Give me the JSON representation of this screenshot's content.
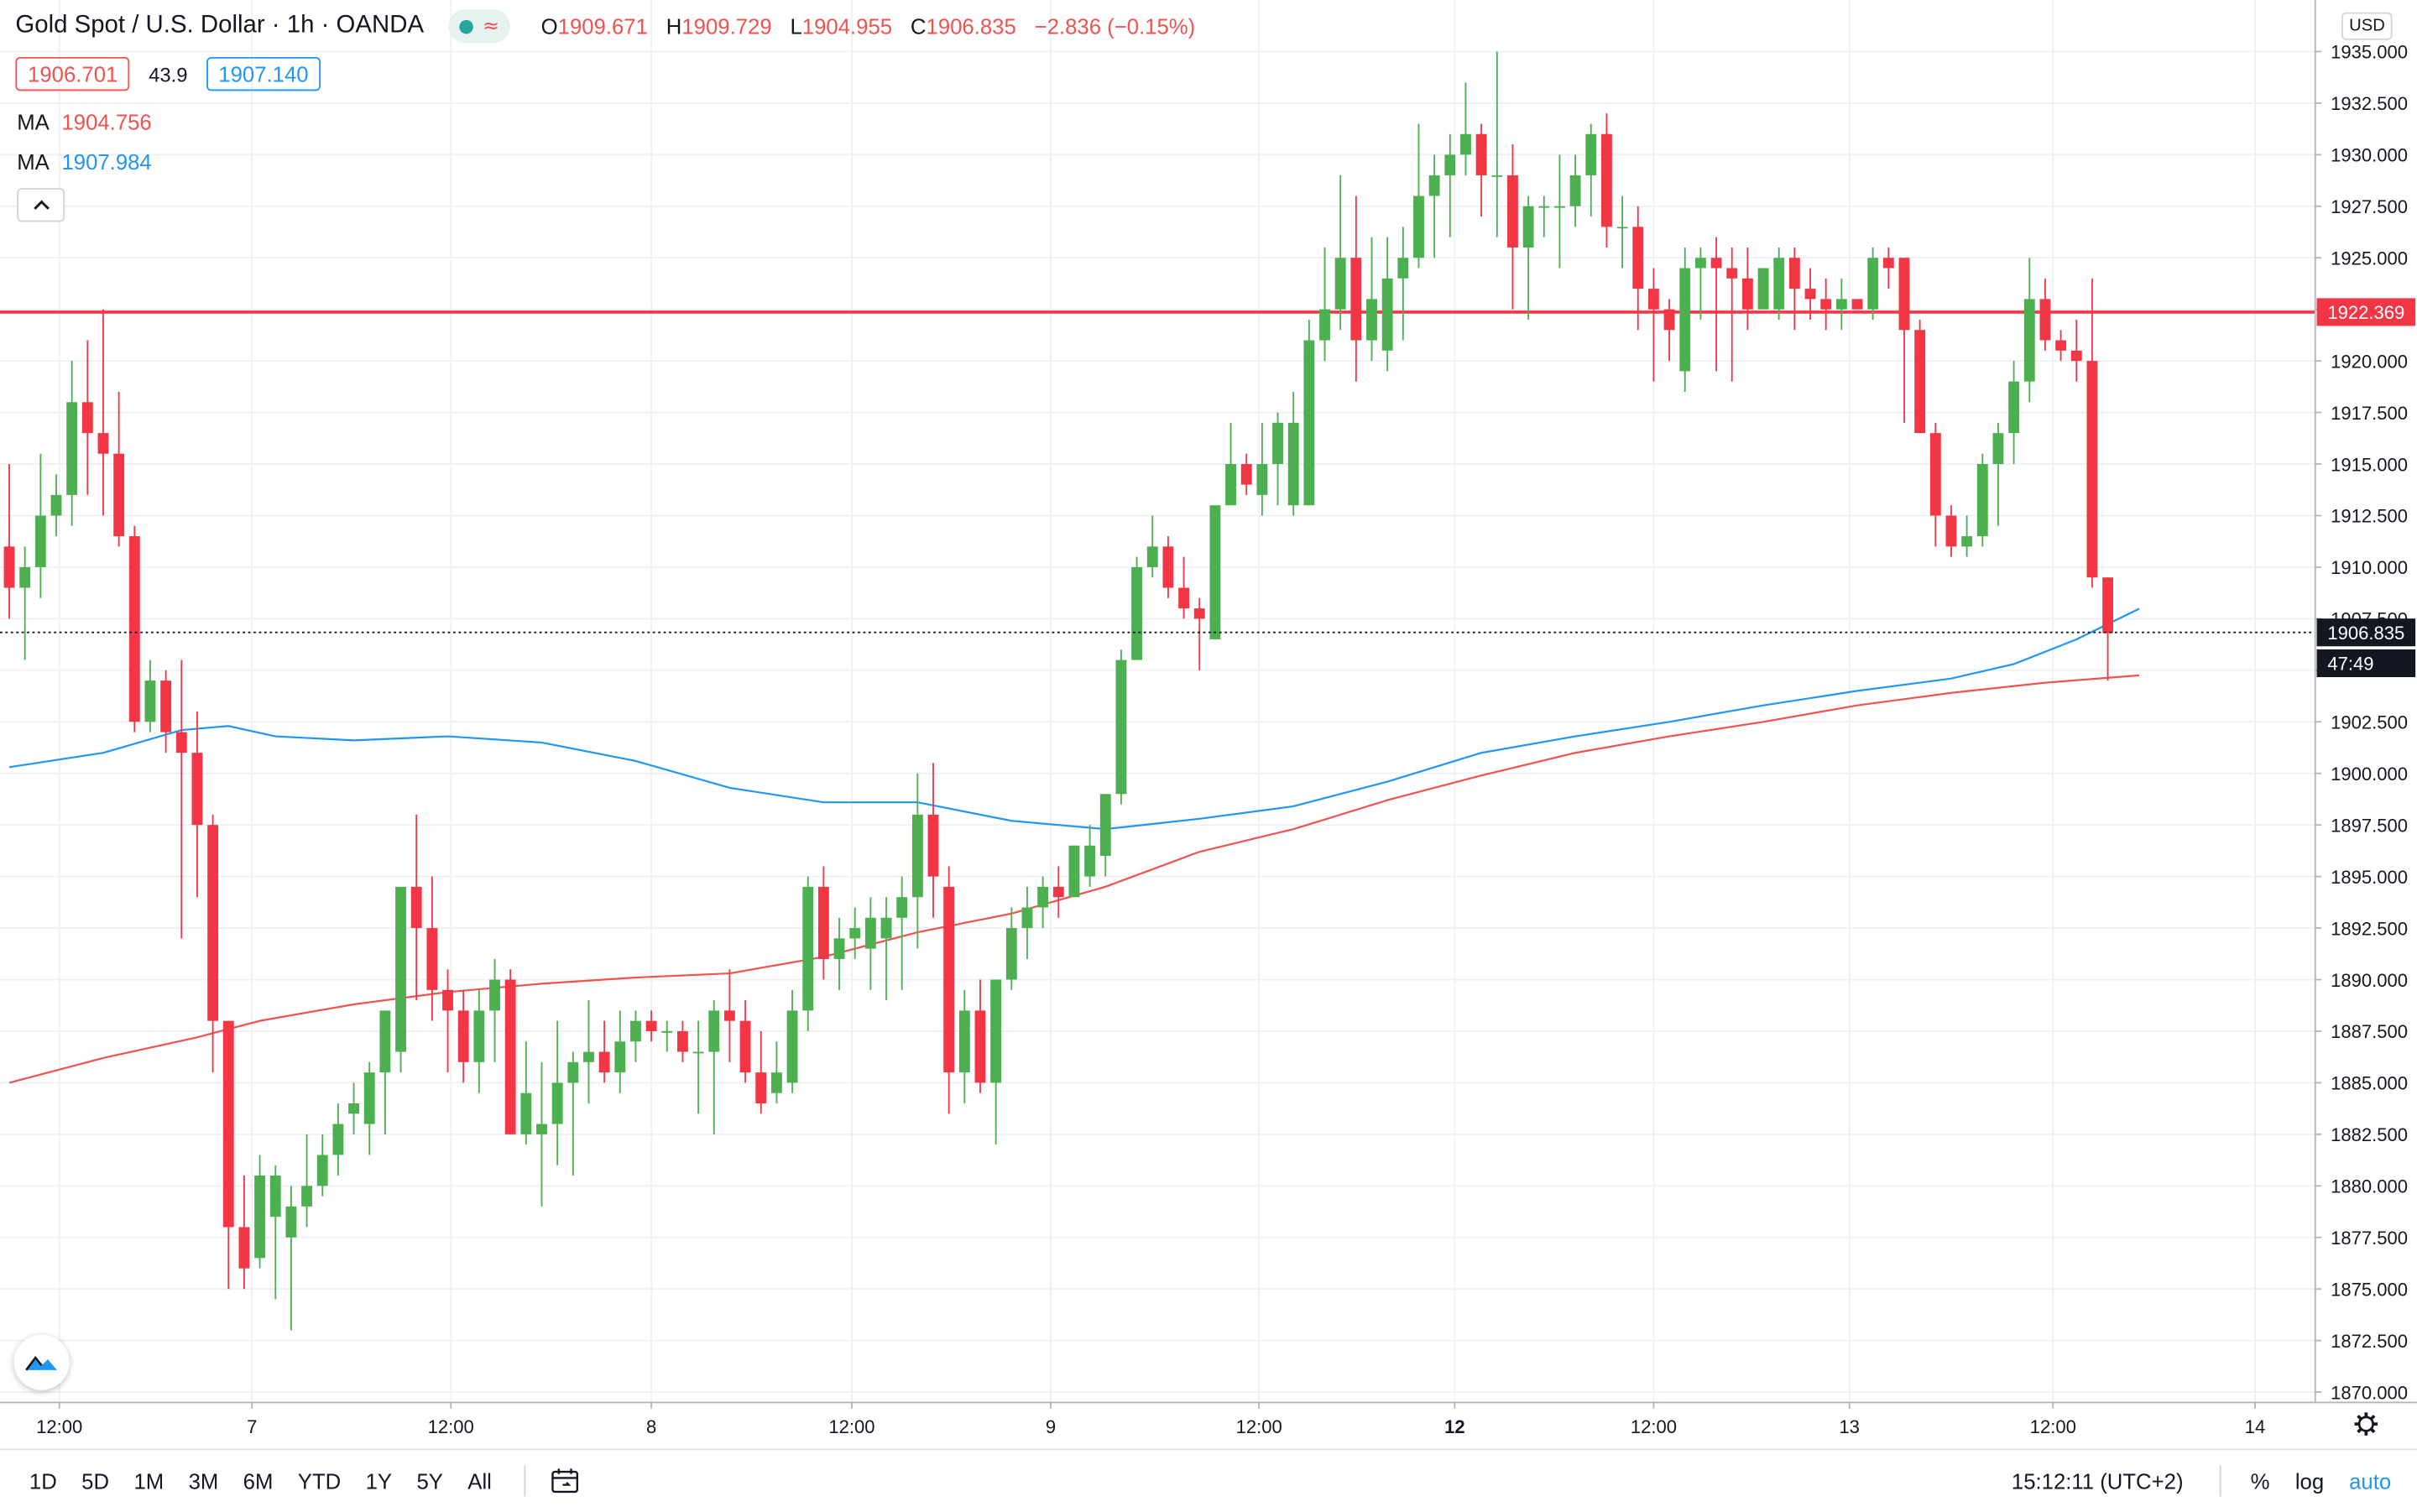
{
  "header": {
    "title": "Gold Spot / U.S. Dollar · 1h · OANDA",
    "ohlc": [
      {
        "k": "O",
        "v": "1909.671"
      },
      {
        "k": "H",
        "v": "1909.729"
      },
      {
        "k": "L",
        "v": "1904.955"
      },
      {
        "k": "C",
        "v": "1906.835"
      }
    ],
    "change": "−2.836 (−0.15%)",
    "bid": "1906.701",
    "spread": "43.9",
    "ask": "1907.140",
    "ma": [
      {
        "label": "MA",
        "value": "1904.756",
        "color": "#ef5350"
      },
      {
        "label": "MA",
        "value": "1907.984",
        "color": "#2196f3"
      }
    ],
    "icons": [
      "status-dot-icon",
      "wave-icon",
      "chevron-up-icon",
      "tradingview-logo-icon"
    ]
  },
  "currency": "USD",
  "toolbar": {
    "ranges": [
      "1D",
      "5D",
      "1M",
      "3M",
      "6M",
      "YTD",
      "1Y",
      "5Y",
      "All"
    ],
    "time": "15:12:11 (UTC+2)",
    "percent": "%",
    "log": "log",
    "auto": "auto",
    "icons": [
      "calendar-goto-icon",
      "settings-gear-icon"
    ]
  },
  "chart_data": {
    "type": "candlestick",
    "symbol": "XAUUSD",
    "interval": "1h",
    "colors": {
      "up": "#4caf50",
      "down": "#f23645",
      "ma_fast": "#ef5350",
      "ma_slow": "#2196f3",
      "level": "#f23645"
    },
    "ylim": [
      1869.5,
      1937.5
    ],
    "y_ticks": [
      "1870.000",
      "1872.500",
      "1875.000",
      "1877.500",
      "1880.000",
      "1882.500",
      "1885.000",
      "1887.500",
      "1890.000",
      "1892.500",
      "1895.000",
      "1897.500",
      "1900.000",
      "1902.500",
      "1905.000",
      "1907.500",
      "1910.000",
      "1912.500",
      "1915.000",
      "1917.500",
      "1920.000",
      "1922.500",
      "1925.000",
      "1927.500",
      "1930.000",
      "1932.500",
      "1935.000"
    ],
    "x_ticks": [
      {
        "label": "12:00",
        "bar": 3.2
      },
      {
        "label": "7",
        "bar": 15.5
      },
      {
        "label": "12:00",
        "bar": 28.2
      },
      {
        "label": "8",
        "bar": 41.0
      },
      {
        "label": "12:00",
        "bar": 53.8
      },
      {
        "label": "9",
        "bar": 66.5
      },
      {
        "label": "12:00",
        "bar": 79.8
      },
      {
        "label": "12",
        "bar": 92.3,
        "bold": true
      },
      {
        "label": "12:00",
        "bar": 105.0
      },
      {
        "label": "13",
        "bar": 117.5
      },
      {
        "label": "12:00",
        "bar": 130.5
      },
      {
        "label": "14",
        "bar": 143.4
      }
    ],
    "horizontal_line": {
      "value": 1922.369,
      "label": "1922.369"
    },
    "last_price": {
      "value": 1906.835,
      "label": "1906.835",
      "countdown": "47:49"
    },
    "candles": [
      [
        1911.0,
        1915.0,
        1907.5,
        1909.0
      ],
      [
        1909.0,
        1911.0,
        1905.5,
        1910.0
      ],
      [
        1910.0,
        1915.5,
        1908.5,
        1912.5
      ],
      [
        1912.5,
        1914.5,
        1911.5,
        1913.5
      ],
      [
        1913.5,
        1920.0,
        1912.0,
        1918.0
      ],
      [
        1918.0,
        1921.0,
        1913.5,
        1916.5
      ],
      [
        1916.5,
        1922.5,
        1912.5,
        1915.5
      ],
      [
        1915.5,
        1918.5,
        1911.0,
        1911.5
      ],
      [
        1911.5,
        1912.0,
        1902.0,
        1902.5
      ],
      [
        1902.5,
        1905.5,
        1902.0,
        1904.5
      ],
      [
        1904.5,
        1905.0,
        1901.0,
        1902.0
      ],
      [
        1902.0,
        1905.5,
        1892.0,
        1901.0
      ],
      [
        1901.0,
        1903.0,
        1894.0,
        1897.5
      ],
      [
        1897.5,
        1898.0,
        1885.5,
        1888.0
      ],
      [
        1888.0,
        1888.0,
        1875.0,
        1878.0
      ],
      [
        1878.0,
        1880.5,
        1875.0,
        1876.0
      ],
      [
        1876.5,
        1881.5,
        1876.0,
        1880.5
      ],
      [
        1878.5,
        1881.0,
        1874.5,
        1880.5
      ],
      [
        1877.5,
        1880.0,
        1873.0,
        1879.0
      ],
      [
        1879.0,
        1882.5,
        1878.0,
        1880.0
      ],
      [
        1880.0,
        1882.5,
        1879.5,
        1881.5
      ],
      [
        1881.5,
        1884.0,
        1880.5,
        1883.0
      ],
      [
        1883.5,
        1885.0,
        1882.5,
        1884.0
      ],
      [
        1883.0,
        1886.0,
        1881.5,
        1885.5
      ],
      [
        1885.5,
        1888.5,
        1882.5,
        1888.5
      ],
      [
        1886.5,
        1894.5,
        1885.5,
        1894.5
      ],
      [
        1894.5,
        1898.0,
        1889.0,
        1892.5
      ],
      [
        1892.5,
        1895.0,
        1888.0,
        1889.5
      ],
      [
        1889.5,
        1890.5,
        1885.5,
        1888.5
      ],
      [
        1888.5,
        1889.5,
        1885.0,
        1886.0
      ],
      [
        1886.0,
        1889.5,
        1884.5,
        1888.5
      ],
      [
        1888.5,
        1891.0,
        1886.0,
        1890.0
      ],
      [
        1890.0,
        1890.5,
        1882.5,
        1882.5
      ],
      [
        1882.5,
        1887.0,
        1882.0,
        1884.5
      ],
      [
        1882.5,
        1886.0,
        1879.0,
        1883.0
      ],
      [
        1883.0,
        1888.0,
        1881.0,
        1885.0
      ],
      [
        1885.0,
        1886.5,
        1880.5,
        1886.0
      ],
      [
        1886.0,
        1889.0,
        1884.0,
        1886.5
      ],
      [
        1886.5,
        1888.0,
        1885.0,
        1885.5
      ],
      [
        1885.5,
        1888.5,
        1884.5,
        1887.0
      ],
      [
        1887.0,
        1888.5,
        1886.0,
        1888.0
      ],
      [
        1888.0,
        1888.5,
        1887.0,
        1887.5
      ],
      [
        1887.5,
        1888.0,
        1886.5,
        1887.5
      ],
      [
        1887.5,
        1888.0,
        1886.0,
        1886.5
      ],
      [
        1886.5,
        1888.0,
        1883.5,
        1886.5
      ],
      [
        1886.5,
        1889.0,
        1882.5,
        1888.5
      ],
      [
        1888.5,
        1890.5,
        1886.0,
        1888.0
      ],
      [
        1888.0,
        1889.0,
        1885.0,
        1885.5
      ],
      [
        1885.5,
        1887.5,
        1883.5,
        1884.0
      ],
      [
        1884.5,
        1887.0,
        1884.0,
        1885.5
      ],
      [
        1885.0,
        1889.5,
        1884.5,
        1888.5
      ],
      [
        1888.5,
        1895.0,
        1887.5,
        1894.5
      ],
      [
        1894.5,
        1895.5,
        1890.0,
        1891.0
      ],
      [
        1891.0,
        1893.0,
        1889.5,
        1892.0
      ],
      [
        1892.0,
        1893.5,
        1891.0,
        1892.5
      ],
      [
        1891.5,
        1894.0,
        1889.5,
        1893.0
      ],
      [
        1892.0,
        1894.0,
        1889.0,
        1893.0
      ],
      [
        1893.0,
        1895.0,
        1889.5,
        1894.0
      ],
      [
        1894.0,
        1900.0,
        1891.5,
        1898.0
      ],
      [
        1898.0,
        1900.5,
        1893.0,
        1895.0
      ],
      [
        1894.5,
        1895.5,
        1883.5,
        1885.5
      ],
      [
        1885.5,
        1889.5,
        1884.0,
        1888.5
      ],
      [
        1888.5,
        1890.0,
        1884.5,
        1885.0
      ],
      [
        1885.0,
        1890.0,
        1882.0,
        1890.0
      ],
      [
        1890.0,
        1893.5,
        1889.5,
        1892.5
      ],
      [
        1892.5,
        1894.5,
        1891.0,
        1893.5
      ],
      [
        1893.5,
        1895.0,
        1892.5,
        1894.5
      ],
      [
        1894.5,
        1895.5,
        1893.0,
        1894.0
      ],
      [
        1894.0,
        1896.5,
        1894.0,
        1896.5
      ],
      [
        1895.0,
        1897.5,
        1894.5,
        1896.5
      ],
      [
        1896.0,
        1898.5,
        1895.0,
        1899.0
      ],
      [
        1899.0,
        1906.0,
        1898.5,
        1905.5
      ],
      [
        1905.5,
        1910.5,
        1905.5,
        1910.0
      ],
      [
        1910.0,
        1912.5,
        1909.5,
        1911.0
      ],
      [
        1911.0,
        1911.5,
        1908.5,
        1909.0
      ],
      [
        1909.0,
        1910.5,
        1907.5,
        1908.0
      ],
      [
        1908.0,
        1908.5,
        1905.0,
        1907.5
      ],
      [
        1906.5,
        1913.0,
        1906.5,
        1913.0
      ],
      [
        1913.0,
        1917.0,
        1913.0,
        1915.0
      ],
      [
        1915.0,
        1915.5,
        1913.5,
        1914.0
      ],
      [
        1913.5,
        1917.0,
        1912.5,
        1915.0
      ],
      [
        1915.0,
        1917.5,
        1913.0,
        1917.0
      ],
      [
        1913.0,
        1918.5,
        1912.5,
        1917.0
      ],
      [
        1913.0,
        1922.0,
        1913.0,
        1921.0
      ],
      [
        1921.0,
        1925.5,
        1920.0,
        1922.5
      ],
      [
        1922.5,
        1929.0,
        1921.5,
        1925.0
      ],
      [
        1925.0,
        1928.0,
        1919.0,
        1921.0
      ],
      [
        1921.0,
        1926.0,
        1920.0,
        1923.0
      ],
      [
        1920.5,
        1926.0,
        1919.5,
        1924.0
      ],
      [
        1924.0,
        1926.5,
        1921.0,
        1925.0
      ],
      [
        1925.0,
        1931.5,
        1924.5,
        1928.0
      ],
      [
        1928.0,
        1930.0,
        1925.0,
        1929.0
      ],
      [
        1929.0,
        1931.0,
        1926.0,
        1930.0
      ],
      [
        1930.0,
        1933.5,
        1929.0,
        1931.0
      ],
      [
        1931.0,
        1931.5,
        1927.0,
        1929.0
      ],
      [
        1929.0,
        1935.0,
        1926.0,
        1929.0
      ],
      [
        1929.0,
        1930.5,
        1922.5,
        1925.5
      ],
      [
        1925.5,
        1928.0,
        1922.0,
        1927.5
      ],
      [
        1927.5,
        1928.0,
        1926.0,
        1927.5
      ],
      [
        1927.5,
        1930.0,
        1924.5,
        1927.5
      ],
      [
        1927.5,
        1930.0,
        1926.5,
        1929.0
      ],
      [
        1929.0,
        1931.5,
        1927.0,
        1931.0
      ],
      [
        1931.0,
        1932.0,
        1925.5,
        1926.5
      ],
      [
        1926.5,
        1928.0,
        1924.5,
        1926.5
      ],
      [
        1926.5,
        1927.5,
        1921.5,
        1923.5
      ],
      [
        1923.5,
        1924.5,
        1919.0,
        1922.5
      ],
      [
        1922.5,
        1923.0,
        1920.0,
        1921.5
      ],
      [
        1919.5,
        1925.5,
        1918.5,
        1924.5
      ],
      [
        1924.5,
        1925.5,
        1922.0,
        1925.0
      ],
      [
        1925.0,
        1926.0,
        1919.5,
        1924.5
      ],
      [
        1924.5,
        1925.5,
        1919.0,
        1924.0
      ],
      [
        1924.0,
        1925.5,
        1921.5,
        1922.5
      ],
      [
        1922.5,
        1924.5,
        1922.5,
        1924.5
      ],
      [
        1922.5,
        1925.5,
        1922.0,
        1925.0
      ],
      [
        1925.0,
        1925.5,
        1921.5,
        1923.5
      ],
      [
        1923.5,
        1924.5,
        1922.0,
        1923.0
      ],
      [
        1923.0,
        1924.0,
        1921.5,
        1922.5
      ],
      [
        1922.5,
        1924.0,
        1921.5,
        1923.0
      ],
      [
        1923.0,
        1923.0,
        1922.5,
        1922.5
      ],
      [
        1922.5,
        1925.5,
        1922.0,
        1925.0
      ],
      [
        1925.0,
        1925.5,
        1923.5,
        1924.5
      ],
      [
        1925.0,
        1925.0,
        1917.0,
        1921.5
      ],
      [
        1921.5,
        1922.0,
        1916.5,
        1916.5
      ],
      [
        1916.5,
        1917.0,
        1911.0,
        1912.5
      ],
      [
        1912.5,
        1913.0,
        1910.5,
        1911.0
      ],
      [
        1911.0,
        1912.5,
        1910.5,
        1911.5
      ],
      [
        1911.5,
        1915.5,
        1911.0,
        1915.0
      ],
      [
        1915.0,
        1917.0,
        1912.0,
        1916.5
      ],
      [
        1916.5,
        1920.0,
        1915.0,
        1919.0
      ],
      [
        1919.0,
        1925.0,
        1918.0,
        1923.0
      ],
      [
        1923.0,
        1924.0,
        1920.5,
        1921.0
      ],
      [
        1921.0,
        1921.5,
        1920.0,
        1920.5
      ],
      [
        1920.5,
        1922.0,
        1919.0,
        1920.0
      ],
      [
        1920.0,
        1924.0,
        1909.0,
        1909.5
      ],
      [
        1909.5,
        1909.5,
        1904.5,
        1906.8
      ]
    ],
    "ma_fast": [
      [
        0,
        1885.0
      ],
      [
        6,
        1886.2
      ],
      [
        12,
        1887.2
      ],
      [
        16,
        1888.0
      ],
      [
        22,
        1888.8
      ],
      [
        28,
        1889.4
      ],
      [
        34,
        1889.8
      ],
      [
        40,
        1890.1
      ],
      [
        46,
        1890.3
      ],
      [
        52,
        1891.1
      ],
      [
        58,
        1892.3
      ],
      [
        64,
        1893.2
      ],
      [
        70,
        1894.5
      ],
      [
        76,
        1896.2
      ],
      [
        82,
        1897.3
      ],
      [
        88,
        1898.7
      ],
      [
        94,
        1899.9
      ],
      [
        100,
        1901.0
      ],
      [
        106,
        1901.8
      ],
      [
        112,
        1902.5
      ],
      [
        118,
        1903.3
      ],
      [
        124,
        1903.9
      ],
      [
        130,
        1904.4
      ],
      [
        136,
        1904.756
      ]
    ],
    "ma_slow": [
      [
        0,
        1900.3
      ],
      [
        6,
        1901.0
      ],
      [
        11,
        1902.1
      ],
      [
        14,
        1902.3
      ],
      [
        17,
        1901.8
      ],
      [
        22,
        1901.6
      ],
      [
        28,
        1901.8
      ],
      [
        34,
        1901.5
      ],
      [
        40,
        1900.6
      ],
      [
        46,
        1899.3
      ],
      [
        52,
        1898.6
      ],
      [
        58,
        1898.6
      ],
      [
        64,
        1897.7
      ],
      [
        70,
        1897.3
      ],
      [
        76,
        1897.8
      ],
      [
        82,
        1898.4
      ],
      [
        88,
        1899.6
      ],
      [
        94,
        1901.0
      ],
      [
        100,
        1901.8
      ],
      [
        106,
        1902.5
      ],
      [
        112,
        1903.3
      ],
      [
        118,
        1904.0
      ],
      [
        124,
        1904.6
      ],
      [
        128,
        1905.3
      ],
      [
        132,
        1906.5
      ],
      [
        136,
        1907.984
      ]
    ]
  }
}
